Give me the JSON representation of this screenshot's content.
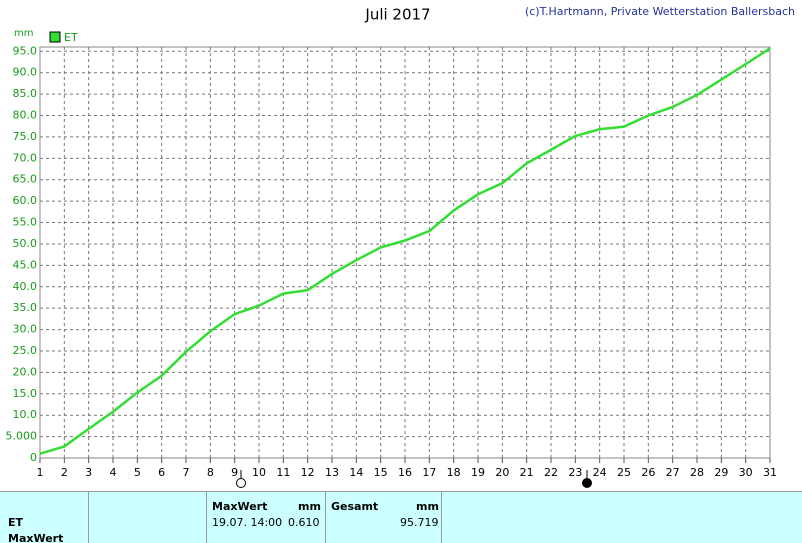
{
  "chart_data": {
    "type": "line",
    "title": "Juli 2017",
    "copyright": "(c)T.Hartmann, Private Wetterstation Ballersbach",
    "y_unit": "mm",
    "x": [
      1,
      2,
      3,
      4,
      5,
      6,
      7,
      8,
      9,
      10,
      11,
      12,
      13,
      14,
      15,
      16,
      17,
      18,
      19,
      20,
      21,
      22,
      23,
      24,
      25,
      26,
      27,
      28,
      29,
      30,
      31
    ],
    "series": [
      {
        "name": "ET",
        "color": "#33dd33",
        "values": [
          1.0,
          2.7,
          6.8,
          10.8,
          15.3,
          19.2,
          24.8,
          29.6,
          33.6,
          35.6,
          38.4,
          39.2,
          43.0,
          46.2,
          49.2,
          50.8,
          53.0,
          57.8,
          61.6,
          64.2,
          68.8,
          72.0,
          75.2,
          76.8,
          77.4,
          80.0,
          82.0,
          84.8,
          88.4,
          92.0,
          95.7
        ]
      }
    ],
    "xlim": [
      1,
      31
    ],
    "xticks": [
      1,
      2,
      3,
      4,
      5,
      6,
      7,
      8,
      9,
      10,
      11,
      12,
      13,
      14,
      15,
      16,
      17,
      18,
      19,
      20,
      21,
      22,
      23,
      24,
      25,
      26,
      27,
      28,
      29,
      30,
      31
    ],
    "ylim": [
      0,
      96
    ],
    "yticks": [
      0,
      {
        "value": 5,
        "label": "5.000"
      },
      {
        "value": 10,
        "label": "10.0"
      },
      {
        "value": 15,
        "label": "15.0"
      },
      {
        "value": 20,
        "label": "20.0"
      },
      {
        "value": 25,
        "label": "25.0"
      },
      {
        "value": 30,
        "label": "30.0"
      },
      {
        "value": 35,
        "label": "35.0"
      },
      {
        "value": 40,
        "label": "40.0"
      },
      {
        "value": 45,
        "label": "45.0"
      },
      {
        "value": 50,
        "label": "50.0"
      },
      {
        "value": 55,
        "label": "55.0"
      },
      {
        "value": 60,
        "label": "60.0"
      },
      {
        "value": 65,
        "label": "65.0"
      },
      {
        "value": 70,
        "label": "70.0"
      },
      {
        "value": 75,
        "label": "75.0"
      },
      {
        "value": 80,
        "label": "80.0"
      },
      {
        "value": 85,
        "label": "85.0"
      },
      {
        "value": 90,
        "label": "90.0"
      },
      {
        "value": 95,
        "label": "95.0"
      }
    ],
    "grid": true
  },
  "table": {
    "row_labels": [
      "ET",
      "MaxWert"
    ],
    "max": {
      "header": "MaxWert",
      "unit": "mm",
      "time": "19.07. 14:00",
      "value": "0.610"
    },
    "total": {
      "header": "Gesamt",
      "unit": "mm",
      "value": "95.719"
    }
  }
}
